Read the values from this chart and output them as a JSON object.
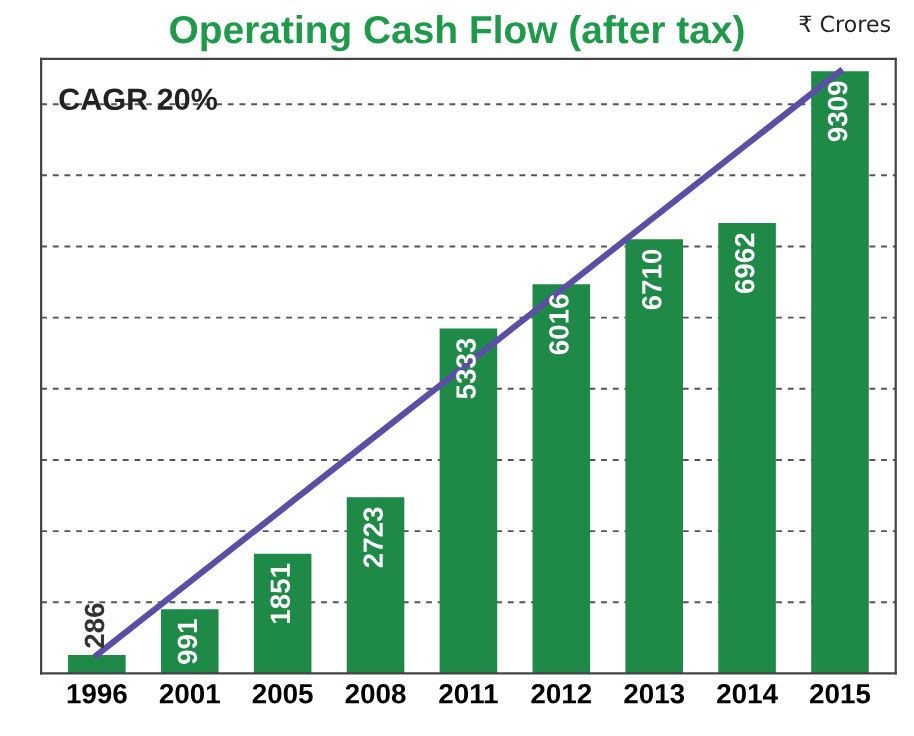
{
  "chart_data": {
    "type": "bar",
    "title": "Operating Cash Flow (after tax)",
    "categories": [
      "1996",
      "2001",
      "2005",
      "2008",
      "2011",
      "2012",
      "2013",
      "2014",
      "2015"
    ],
    "series": [
      {
        "color": "#1f8a48",
        "values": [
          286,
          991,
          1851,
          2723,
          5333,
          6016,
          6710,
          6962,
          9309
        ],
        "value_labels": [
          "286",
          "991",
          "1851",
          "2723",
          "5333",
          "6016",
          "6710",
          "6962",
          "9309"
        ]
      },
      {
        "type": "line",
        "color": "#5a4ea6",
        "values": [
          286,
          1414,
          2542,
          3670,
          4798,
          5926,
          7053,
          8181,
          9309
        ]
      }
    ],
    "annotations": [
      "₹ Crores",
      "CAGR 20%"
    ],
    "ylim": [
      0,
      9500
    ],
    "yticks": [
      {
        "value": 1100,
        "label": null
      },
      {
        "value": 2200,
        "label": null
      },
      {
        "value": 3300,
        "label": null
      },
      {
        "value": 4400,
        "label": null
      },
      {
        "value": 5500,
        "label": null
      },
      {
        "value": 6600,
        "label": null
      },
      {
        "value": 7700,
        "label": null
      },
      {
        "value": 8800,
        "label": null
      }
    ],
    "tick_labels": "x",
    "grid": "y",
    "line_style": "solid"
  }
}
